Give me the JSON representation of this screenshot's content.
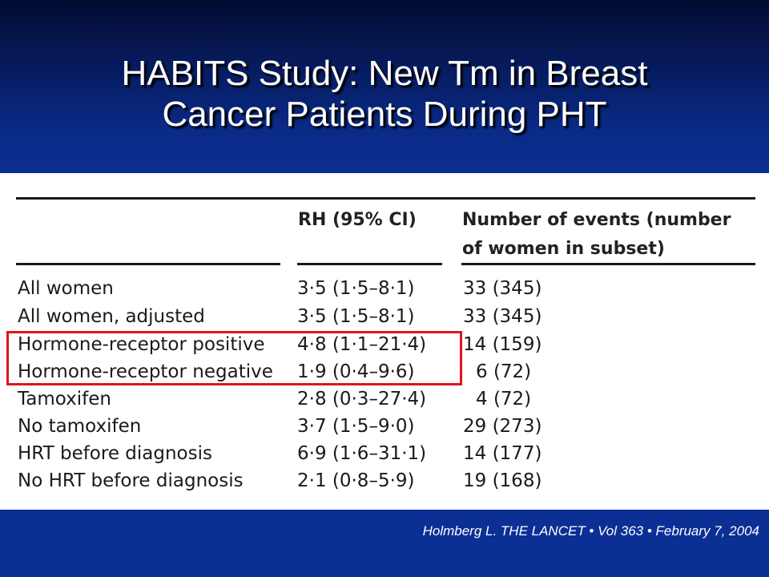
{
  "slide": {
    "title_line1": "HABITS Study: New Tm in Breast",
    "title_line2": "Cancer Patients During PHT"
  },
  "table": {
    "headers": {
      "rh": "RH (95% CI)",
      "events_line1": "Number of events (number",
      "events_line2": "of women in subset)"
    },
    "rows": [
      {
        "label": "All women",
        "rh": "3·5 (1·5–8·1)",
        "events": "33 (345)"
      },
      {
        "label": "All women, adjusted",
        "rh": "3·5 (1·5–8·1)",
        "events": "33 (345)"
      },
      {
        "label": "Hormone-receptor positive",
        "rh": "4·8 (1·1–21·4)",
        "events": "14 (159)"
      },
      {
        "label": "Hormone-receptor negative",
        "rh": "1·9 (0·4–9·6)",
        "events": "6 (72)"
      },
      {
        "label": "Tamoxifen",
        "rh": "2·8 (0·3–27·4)",
        "events": "4 (72)"
      },
      {
        "label": "No tamoxifen",
        "rh": "3·7 (1·5–9·0)",
        "events": "29 (273)"
      },
      {
        "label": "HRT before diagnosis",
        "rh": "6·9 (1·6–31·1)",
        "events": "14 (177)"
      },
      {
        "label": "No HRT before diagnosis",
        "rh": "2·1 (0·8–5·9)",
        "events": "19 (168)"
      }
    ]
  },
  "footer": {
    "citation": "Holmberg L. THE LANCET • Vol 363 • February 7, 2004"
  },
  "colors": {
    "highlight": "#e0141e",
    "background": "#0b2f94"
  }
}
